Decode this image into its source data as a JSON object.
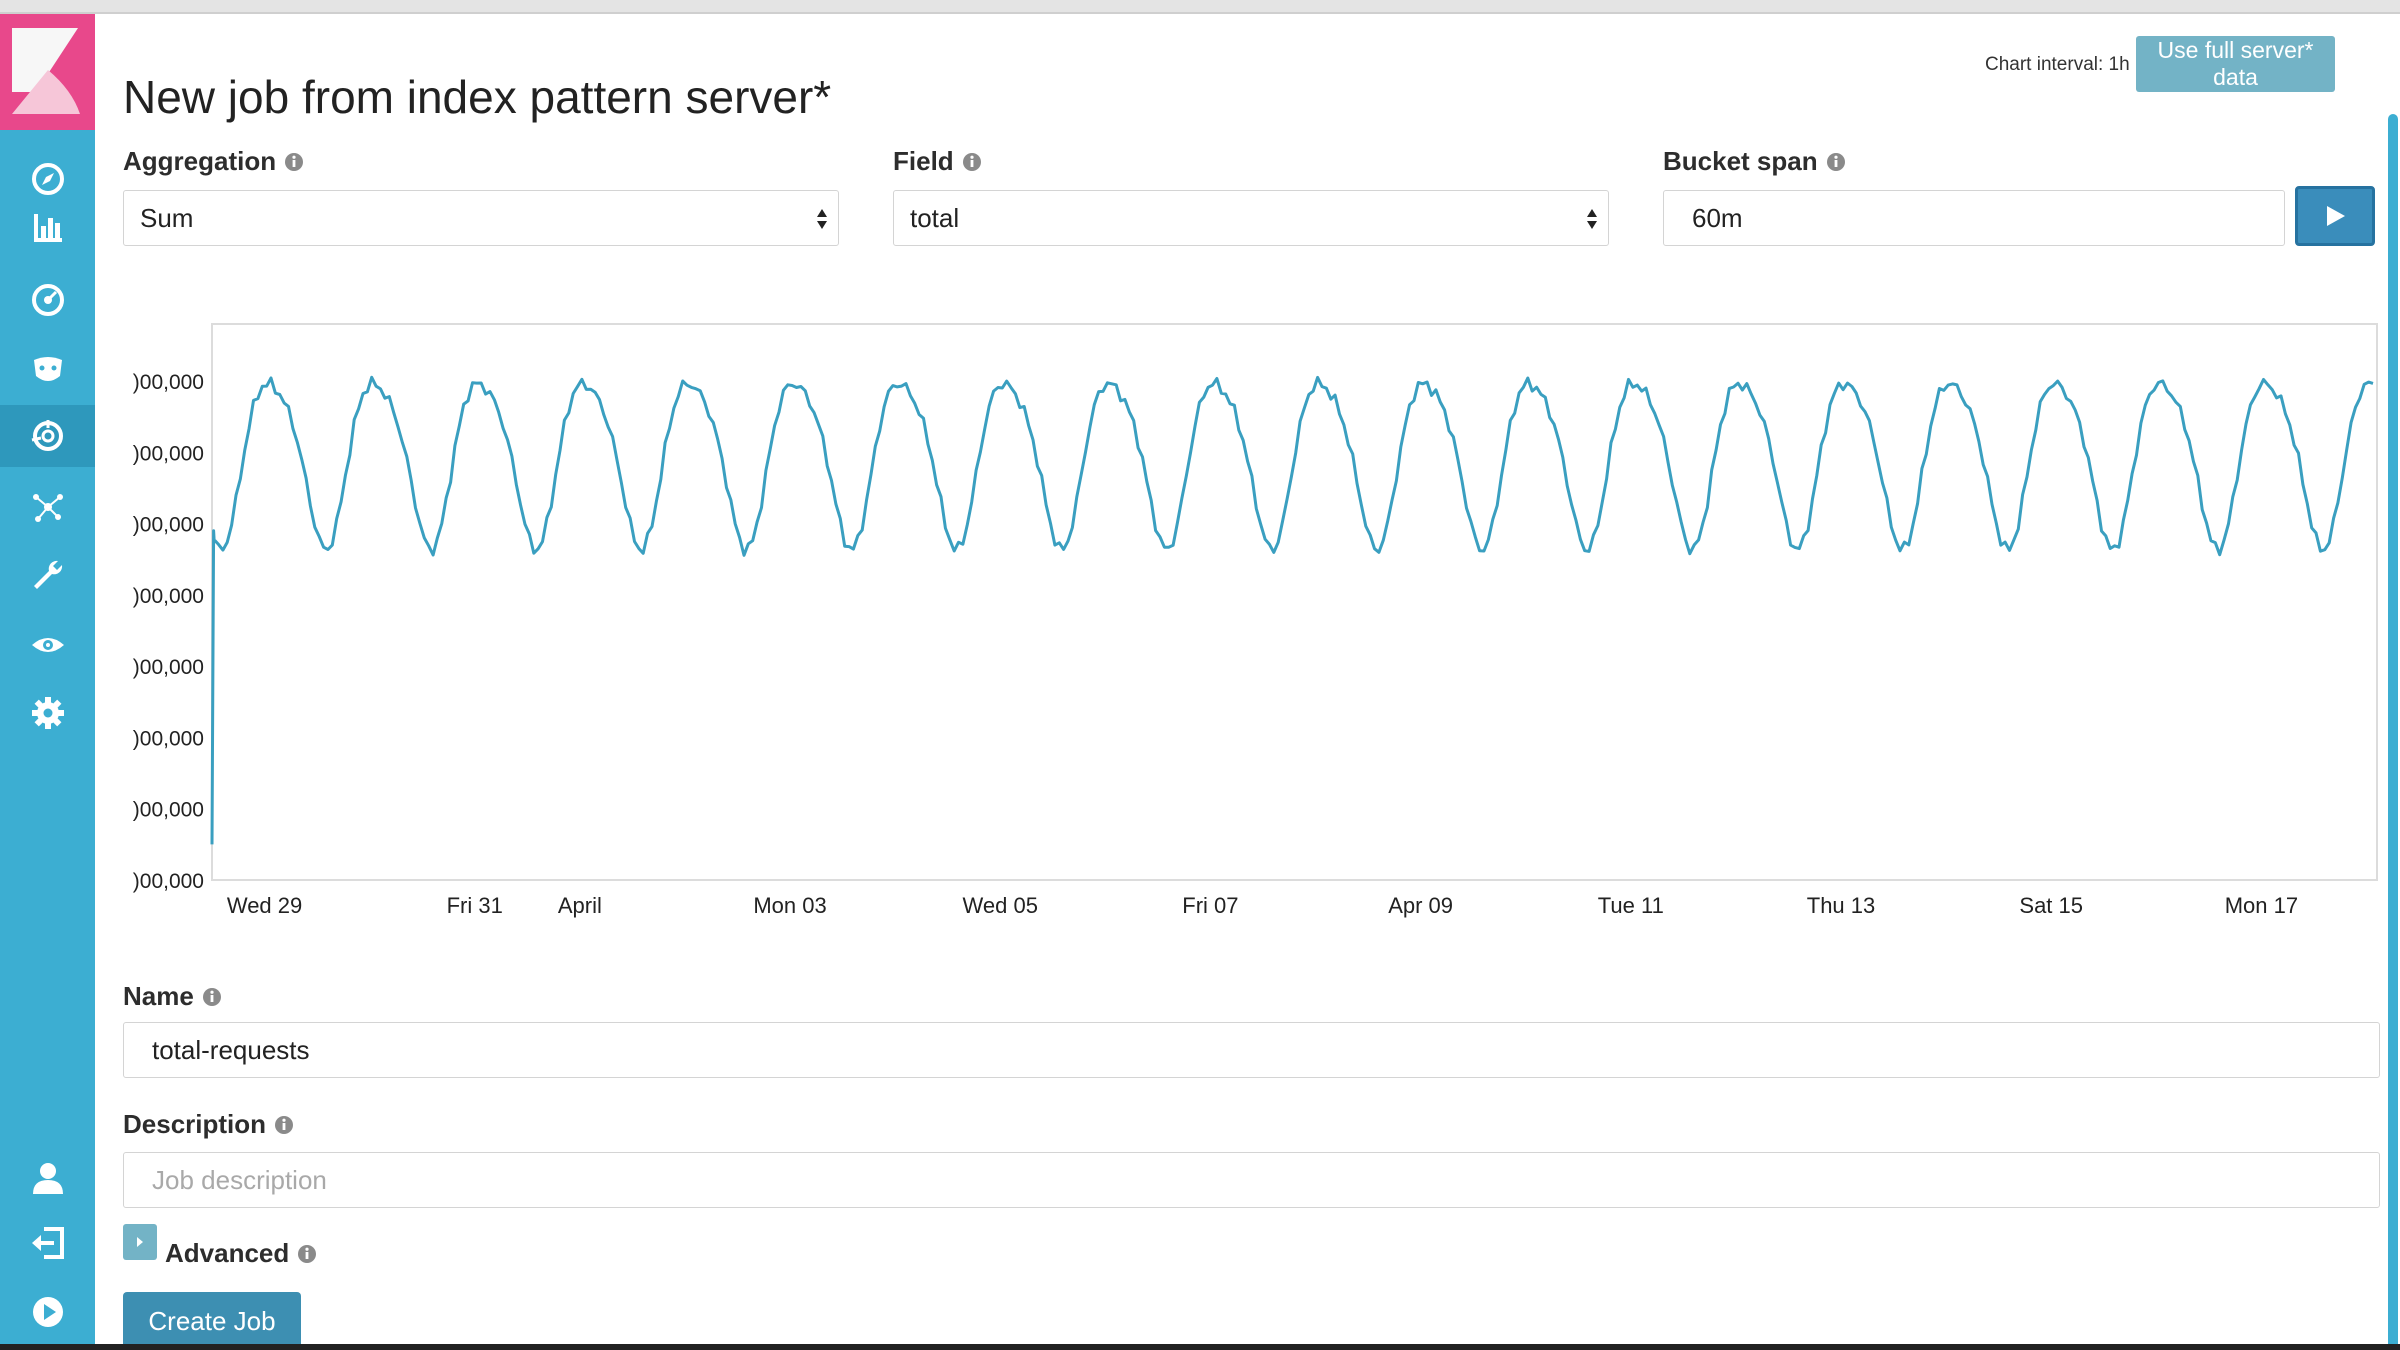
{
  "header": {
    "title": "New job from index pattern server*",
    "chart_interval": "Chart interval: 1h",
    "use_full_data_label": "Use full server* data"
  },
  "sidebar": {
    "items": [
      {
        "icon": "compass-icon",
        "active": false
      },
      {
        "icon": "bar-chart-icon",
        "active": false
      },
      {
        "icon": "dashboard-icon",
        "active": false
      },
      {
        "icon": "timelion-icon",
        "active": false
      },
      {
        "icon": "machine-learning-icon",
        "active": true
      },
      {
        "icon": "graph-icon",
        "active": false
      },
      {
        "icon": "wrench-icon",
        "active": false
      },
      {
        "icon": "eye-icon",
        "active": false
      },
      {
        "icon": "gear-icon",
        "active": false
      }
    ],
    "bottom_items": [
      {
        "icon": "user-icon"
      },
      {
        "icon": "logout-icon"
      },
      {
        "icon": "play-circle-icon"
      }
    ]
  },
  "form": {
    "aggregation": {
      "label": "Aggregation",
      "value": "Sum"
    },
    "field": {
      "label": "Field",
      "value": "total"
    },
    "bucket_span": {
      "label": "Bucket span",
      "value": "60m"
    },
    "name": {
      "label": "Name",
      "value": "total-requests"
    },
    "description": {
      "label": "Description",
      "placeholder": "Job description"
    },
    "advanced_label": "Advanced",
    "create_job_label": "Create Job"
  },
  "chart_data": {
    "type": "line",
    "y_tick_labels": [
      ")00,000",
      ")00,000",
      ")00,000",
      ")00,000",
      ")00,000",
      ")00,000",
      ")00,000",
      ")00,000"
    ],
    "x_tick_labels": [
      "Wed 29",
      "Fri 31",
      "April",
      "Mon 03",
      "Wed 05",
      "Fri 07",
      "Apr 09",
      "Tue 11",
      "Thu 13",
      "Sat 15",
      "Mon 17"
    ],
    "x_tick_positions_days": [
      0.5,
      2.5,
      3.5,
      5.5,
      7.5,
      9.5,
      11.5,
      13.5,
      15.5,
      17.5,
      19.5
    ],
    "x_range_days": [
      0.0,
      20.6
    ],
    "y_range_levels": [
      0,
      7.8
    ],
    "series": [
      {
        "color": "#3a9fc0",
        "pattern": "daily cycle, 20 peaks",
        "start_value": 0.5,
        "peak_value": 7.1,
        "trough_value": 4.8
      }
    ],
    "grid": false
  }
}
